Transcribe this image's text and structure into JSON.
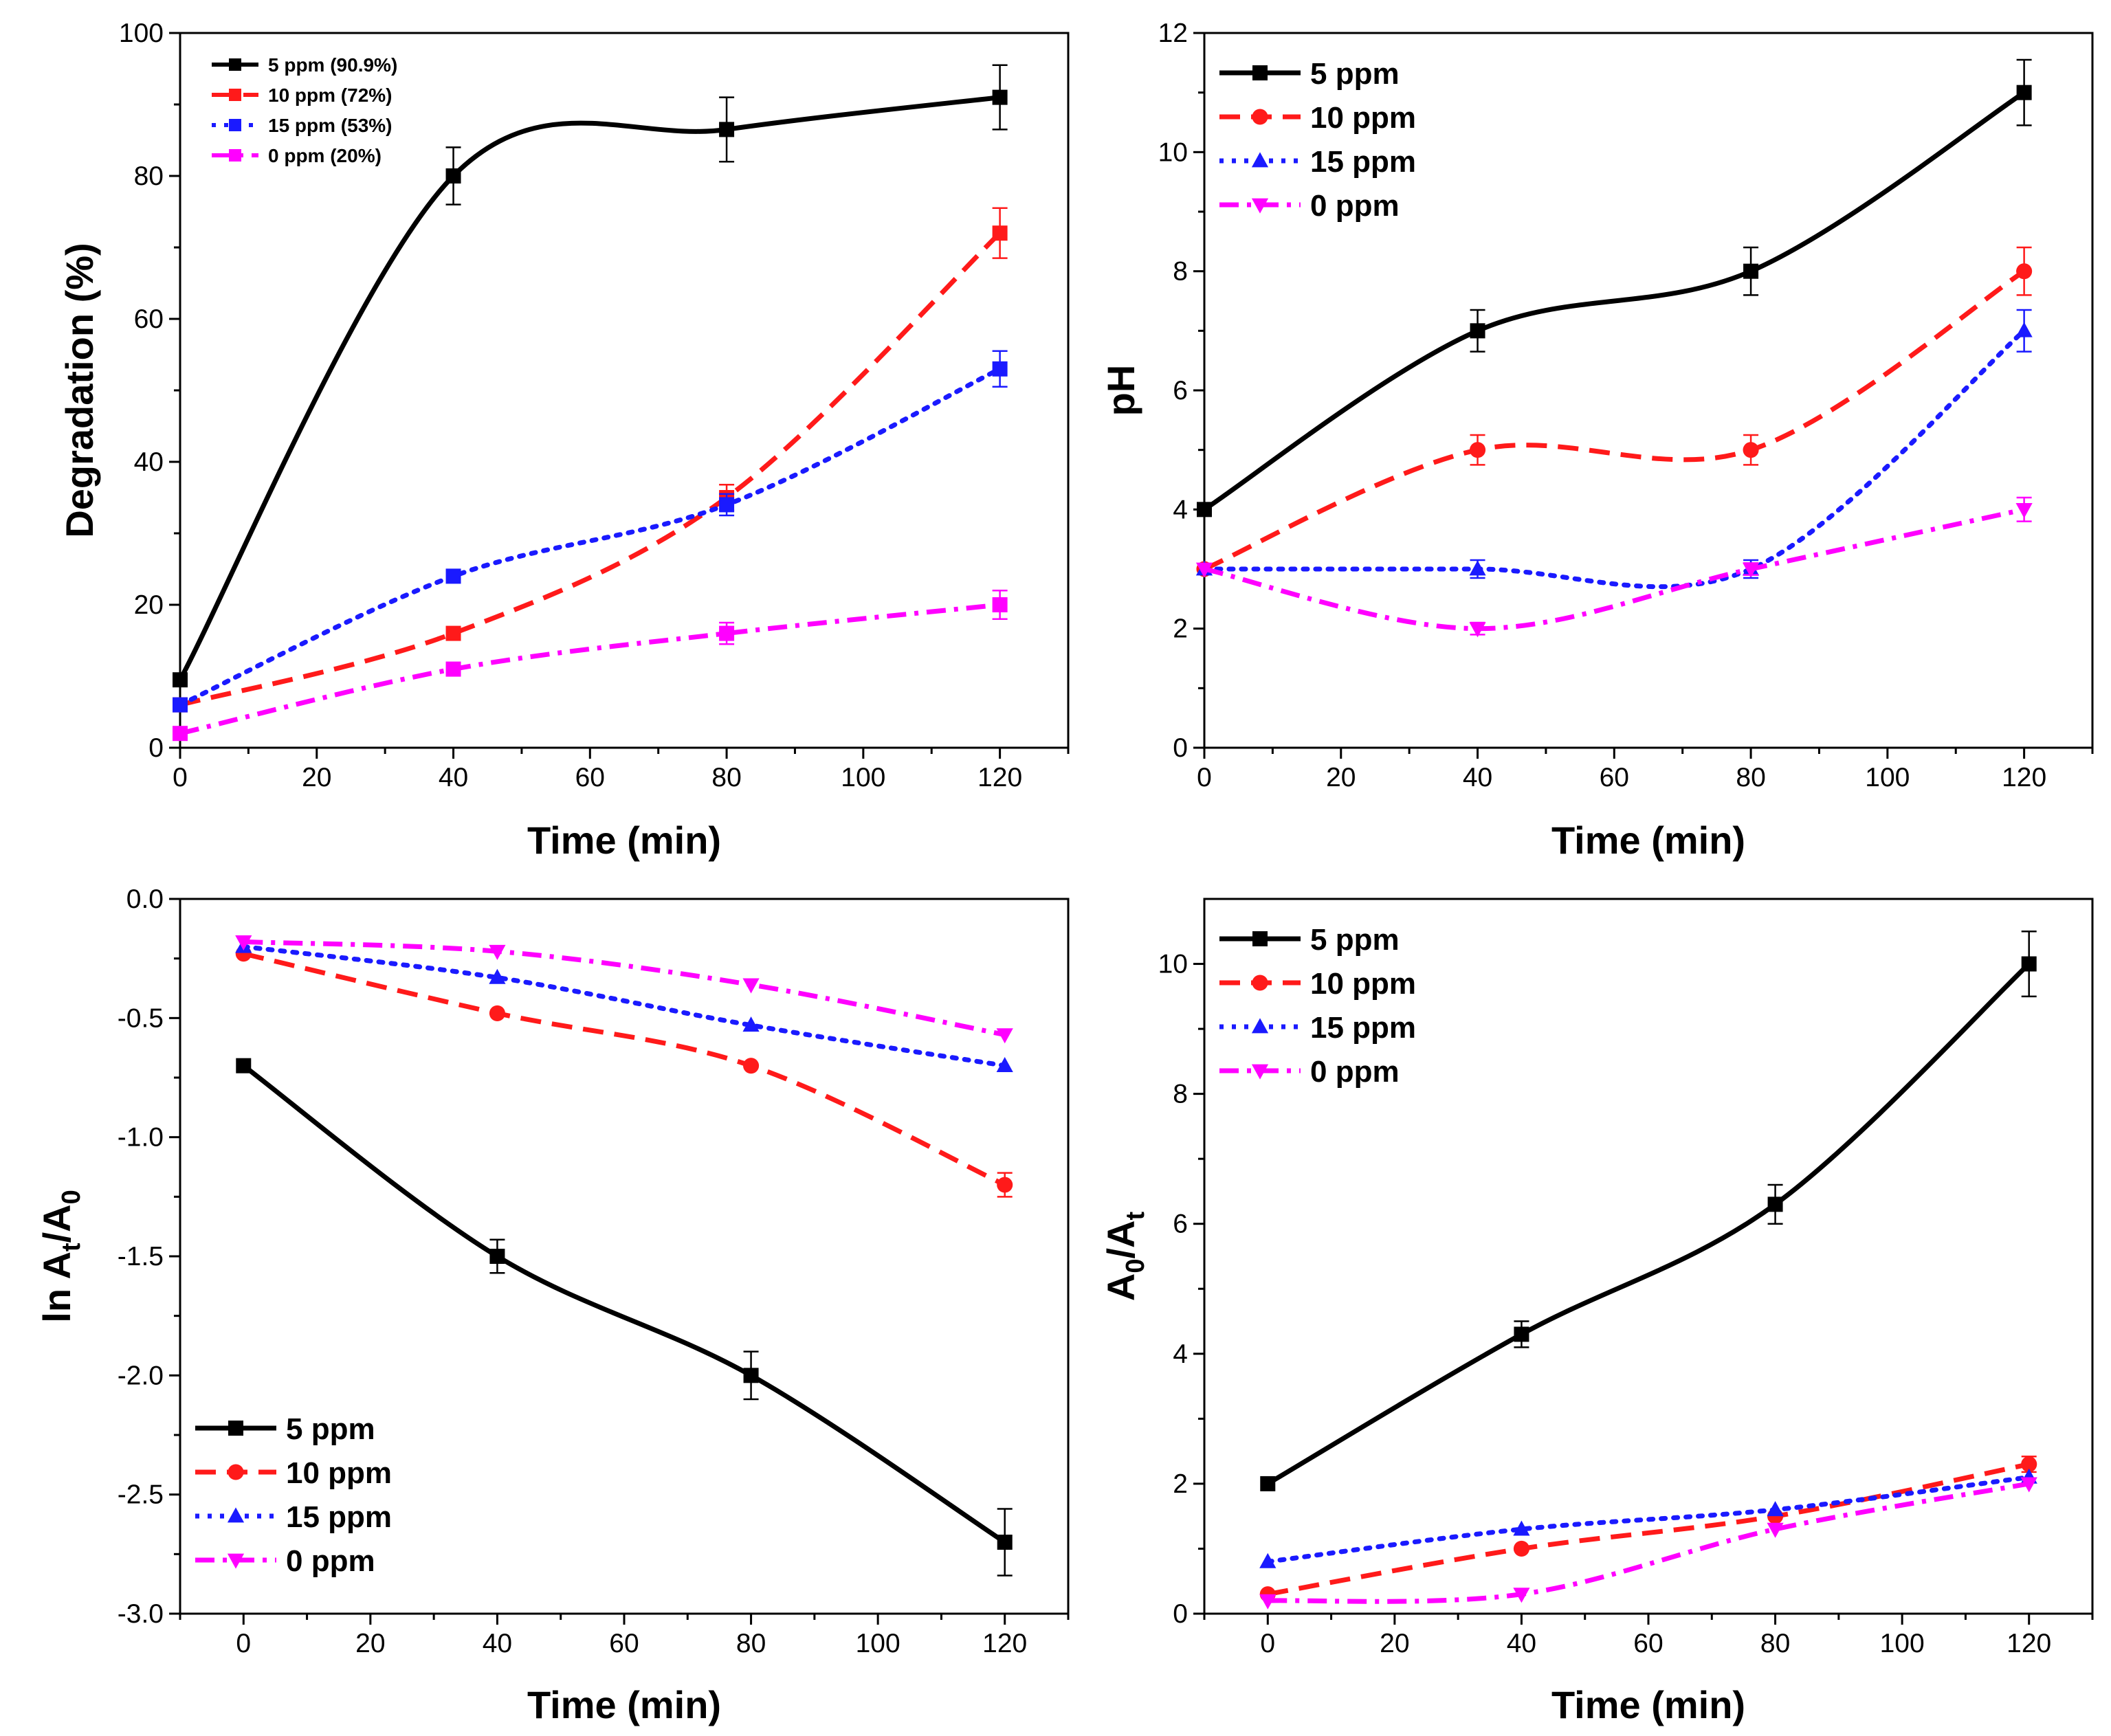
{
  "figure_title": "",
  "chart_data": [
    {
      "id": "degradation",
      "type": "line",
      "title": "",
      "xlabel": "Time (min)",
      "ylabel": "Degradation (%)",
      "xlim": [
        0,
        130
      ],
      "ylim": [
        0,
        100
      ],
      "xticks": [
        0,
        20,
        40,
        60,
        80,
        100,
        120
      ],
      "xtick_labels": [
        "0",
        "20",
        "40",
        "60",
        "80",
        "100",
        "120"
      ],
      "yticks": [
        0,
        20,
        40,
        60,
        80,
        100
      ],
      "ytick_labels": [
        "0",
        "20",
        "40",
        "60",
        "80",
        "100"
      ],
      "legend_position": "top-left",
      "legend_size": "small",
      "series": [
        {
          "name": "5 ppm (90.9%)",
          "color": "#000000",
          "dash": "solid",
          "marker": "square",
          "smooth": true,
          "x": [
            0,
            40,
            80,
            120
          ],
          "y": [
            9.5,
            80,
            86.5,
            91
          ],
          "err": [
            0,
            4,
            4.5,
            4.5
          ]
        },
        {
          "name": "10 ppm (72%)",
          "color": "#ff1a1a",
          "dash": "dash",
          "marker": "square",
          "smooth": true,
          "x": [
            0,
            40,
            80,
            120
          ],
          "y": [
            6,
            16,
            35,
            72
          ],
          "err": [
            0,
            0,
            1.8,
            3.5
          ]
        },
        {
          "name": "15 ppm (53%)",
          "color": "#1a1aff",
          "dash": "dot",
          "marker": "square",
          "smooth": true,
          "x": [
            0,
            40,
            80,
            120
          ],
          "y": [
            6,
            24,
            34,
            53
          ],
          "err": [
            0,
            0,
            1.5,
            2.5
          ]
        },
        {
          "name": "0 ppm (20%)",
          "color": "#ff00ff",
          "dash": "dashdot",
          "marker": "square",
          "smooth": true,
          "x": [
            0,
            40,
            80,
            120
          ],
          "y": [
            2,
            11,
            16,
            20
          ],
          "err": [
            0,
            0,
            1.5,
            2
          ]
        }
      ]
    },
    {
      "id": "ph",
      "type": "line",
      "title": "",
      "xlabel": "Time (min)",
      "ylabel": "pH",
      "xlim": [
        0,
        130
      ],
      "ylim": [
        0,
        12
      ],
      "xticks": [
        0,
        20,
        40,
        60,
        80,
        100,
        120
      ],
      "xtick_labels": [
        "0",
        "20",
        "40",
        "60",
        "80",
        "100",
        "120"
      ],
      "yticks": [
        0,
        2,
        4,
        6,
        8,
        10,
        12
      ],
      "ytick_labels": [
        "0",
        "2",
        "4",
        "6",
        "8",
        "10",
        "12"
      ],
      "legend_position": "top-left",
      "legend_size": "large",
      "series": [
        {
          "name": "5 ppm",
          "color": "#000000",
          "dash": "solid",
          "marker": "square",
          "smooth": true,
          "x": [
            0,
            40,
            80,
            120
          ],
          "y": [
            4,
            7,
            8,
            11
          ],
          "err": [
            0,
            0.35,
            0.4,
            0.55
          ]
        },
        {
          "name": "10 ppm",
          "color": "#ff1a1a",
          "dash": "dash",
          "marker": "circle",
          "smooth": true,
          "x": [
            0,
            40,
            80,
            120
          ],
          "y": [
            3,
            5,
            5,
            8
          ],
          "err": [
            0,
            0.25,
            0.25,
            0.4
          ]
        },
        {
          "name": "15 ppm",
          "color": "#1a1aff",
          "dash": "dot",
          "marker": "triangle",
          "smooth": true,
          "x": [
            0,
            40,
            80,
            120
          ],
          "y": [
            3,
            3,
            3,
            7
          ],
          "err": [
            0,
            0.15,
            0.15,
            0.35
          ]
        },
        {
          "name": "0 ppm",
          "color": "#ff00ff",
          "dash": "dashdot",
          "marker": "triangle-down",
          "smooth": true,
          "x": [
            0,
            40,
            80,
            120
          ],
          "y": [
            3,
            2,
            3,
            4
          ],
          "err": [
            0,
            0.1,
            0.1,
            0.2
          ]
        }
      ]
    },
    {
      "id": "ln-ratio",
      "type": "line",
      "title": "",
      "xlabel": "Time (min)",
      "ylabel": "ln At/A0",
      "ylabel_parts": {
        "a": "ln A",
        "b": "t",
        "c": "/A",
        "d": "0"
      },
      "xlim": [
        -10,
        130
      ],
      "ylim": [
        -3,
        0
      ],
      "xticks": [
        0,
        20,
        40,
        60,
        80,
        100,
        120
      ],
      "xtick_labels": [
        "0",
        "20",
        "40",
        "60",
        "80",
        "100",
        "120"
      ],
      "yticks": [
        -3,
        -2.5,
        -2,
        -1.5,
        -1,
        -0.5,
        0
      ],
      "ytick_labels": [
        "-3.0",
        "-2.5",
        "-2.0",
        "-1.5",
        "-1.0",
        "-0.5",
        "0.0"
      ],
      "legend_position": "bottom-left",
      "legend_size": "large",
      "series": [
        {
          "name": "5 ppm",
          "color": "#000000",
          "dash": "solid",
          "marker": "square",
          "smooth": true,
          "x": [
            0,
            40,
            80,
            120
          ],
          "y": [
            -0.7,
            -1.5,
            -2.0,
            -2.7
          ],
          "err": [
            0,
            0.07,
            0.1,
            0.14
          ]
        },
        {
          "name": "10 ppm",
          "color": "#ff1a1a",
          "dash": "dash",
          "marker": "circle",
          "smooth": true,
          "x": [
            0,
            40,
            80,
            120
          ],
          "y": [
            -0.23,
            -0.48,
            -0.7,
            -1.2
          ],
          "err": [
            0,
            0,
            0,
            0.05
          ]
        },
        {
          "name": "15 ppm",
          "color": "#1a1aff",
          "dash": "dot",
          "marker": "triangle",
          "smooth": true,
          "x": [
            0,
            40,
            80,
            120
          ],
          "y": [
            -0.2,
            -0.33,
            -0.53,
            -0.7
          ],
          "err": [
            0,
            0,
            0,
            0
          ]
        },
        {
          "name": "0 ppm",
          "color": "#ff00ff",
          "dash": "dashdot",
          "marker": "triangle-down",
          "smooth": true,
          "x": [
            0,
            40,
            80,
            120
          ],
          "y": [
            -0.18,
            -0.22,
            -0.36,
            -0.57
          ],
          "err": [
            0,
            0,
            0,
            0
          ]
        }
      ]
    },
    {
      "id": "ratio",
      "type": "line",
      "title": "",
      "xlabel": "Time (min)",
      "ylabel": "A0/At",
      "ylabel_parts": {
        "a": "A",
        "b": "0",
        "c": "/A",
        "d": "t"
      },
      "xlim": [
        -10,
        130
      ],
      "ylim": [
        0,
        11
      ],
      "xticks": [
        0,
        20,
        40,
        60,
        80,
        100,
        120
      ],
      "xtick_labels": [
        "0",
        "20",
        "40",
        "60",
        "80",
        "100",
        "120"
      ],
      "yticks": [
        0,
        2,
        4,
        6,
        8,
        10
      ],
      "ytick_labels": [
        "0",
        "2",
        "4",
        "6",
        "8",
        "10"
      ],
      "legend_position": "top-left",
      "legend_size": "large",
      "series": [
        {
          "name": "5 ppm",
          "color": "#000000",
          "dash": "solid",
          "marker": "square",
          "smooth": true,
          "x": [
            0,
            40,
            80,
            120
          ],
          "y": [
            2,
            4.3,
            6.3,
            10
          ],
          "err": [
            0,
            0.2,
            0.3,
            0.5
          ]
        },
        {
          "name": "10 ppm",
          "color": "#ff1a1a",
          "dash": "dash",
          "marker": "circle",
          "smooth": true,
          "x": [
            0,
            40,
            80,
            120
          ],
          "y": [
            0.3,
            1.0,
            1.5,
            2.3
          ],
          "err": [
            0,
            0,
            0,
            0.12
          ]
        },
        {
          "name": "15 ppm",
          "color": "#1a1aff",
          "dash": "dot",
          "marker": "triangle",
          "smooth": true,
          "x": [
            0,
            40,
            80,
            120
          ],
          "y": [
            0.8,
            1.3,
            1.6,
            2.1
          ],
          "err": [
            0,
            0,
            0,
            0
          ]
        },
        {
          "name": "0 ppm",
          "color": "#ff00ff",
          "dash": "dashdot",
          "marker": "triangle-down",
          "smooth": true,
          "x": [
            0,
            40,
            80,
            120
          ],
          "y": [
            0.2,
            0.3,
            1.3,
            2.0
          ],
          "err": [
            0,
            0,
            0,
            0
          ]
        }
      ]
    }
  ]
}
